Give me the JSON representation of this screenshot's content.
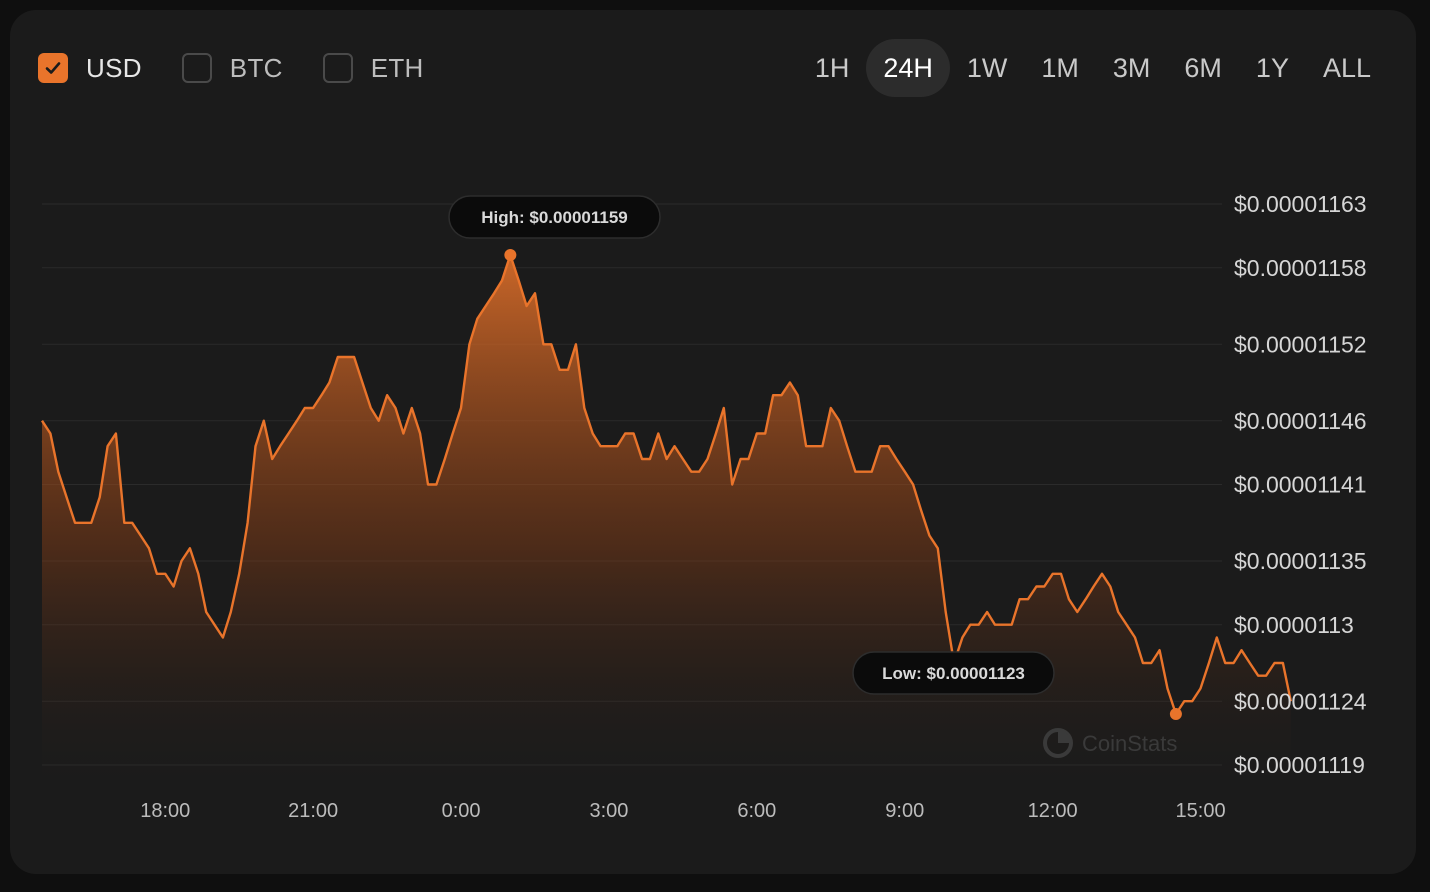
{
  "currencies": [
    {
      "label": "USD",
      "checked": true
    },
    {
      "label": "BTC",
      "checked": false
    },
    {
      "label": "ETH",
      "checked": false
    }
  ],
  "time_ranges": [
    "1H",
    "24H",
    "1W",
    "1M",
    "3M",
    "6M",
    "1Y",
    "ALL"
  ],
  "active_range": "24H",
  "accent_color": "#e9742b",
  "watermark": "CoinStats",
  "chart_data": {
    "type": "area",
    "title": "",
    "xlabel": "",
    "ylabel": "",
    "x_tick_labels": [
      "18:00",
      "21:00",
      "0:00",
      "3:00",
      "6:00",
      "9:00",
      "12:00",
      "15:00"
    ],
    "y_tick_labels": [
      "$0.00001163",
      "$0.00001158",
      "$0.00001152",
      "$0.00001146",
      "$0.00001141",
      "$0.00001135",
      "$0.0000113",
      "$0.00001124",
      "$0.00001119"
    ],
    "y_tick_values": [
      1.163e-05,
      1.158e-05,
      1.152e-05,
      1.146e-05,
      1.141e-05,
      1.135e-05,
      1.13e-05,
      1.124e-05,
      1.119e-05
    ],
    "x_unit": "hours elapsed since 15:30 (day 1)",
    "ylim": [
      1.119e-05,
      1.163e-05
    ],
    "grid": true,
    "high": {
      "label": "High: $0.00001159",
      "value": 1.159e-05
    },
    "low": {
      "label": "Low: $0.00001123",
      "value": 1.123e-05
    },
    "series": [
      {
        "values": [
          [
            0.0,
            1.146e-05
          ],
          [
            0.17,
            1.145e-05
          ],
          [
            0.33,
            1.142e-05
          ],
          [
            0.5,
            1.14e-05
          ],
          [
            0.67,
            1.138e-05
          ],
          [
            0.83,
            1.138e-05
          ],
          [
            1.0,
            1.138e-05
          ],
          [
            1.17,
            1.14e-05
          ],
          [
            1.33,
            1.144e-05
          ],
          [
            1.5,
            1.145e-05
          ],
          [
            1.67,
            1.138e-05
          ],
          [
            1.83,
            1.138e-05
          ],
          [
            2.0,
            1.137e-05
          ],
          [
            2.17,
            1.136e-05
          ],
          [
            2.33,
            1.134e-05
          ],
          [
            2.5,
            1.134e-05
          ],
          [
            2.67,
            1.133e-05
          ],
          [
            2.83,
            1.135e-05
          ],
          [
            3.0,
            1.136e-05
          ],
          [
            3.17,
            1.134e-05
          ],
          [
            3.33,
            1.131e-05
          ],
          [
            3.5,
            1.13e-05
          ],
          [
            3.67,
            1.129e-05
          ],
          [
            3.83,
            1.131e-05
          ],
          [
            4.0,
            1.134e-05
          ],
          [
            4.17,
            1.138e-05
          ],
          [
            4.33,
            1.144e-05
          ],
          [
            4.5,
            1.146e-05
          ],
          [
            4.67,
            1.143e-05
          ],
          [
            4.83,
            1.144e-05
          ],
          [
            5.0,
            1.145e-05
          ],
          [
            5.17,
            1.146e-05
          ],
          [
            5.33,
            1.147e-05
          ],
          [
            5.5,
            1.147e-05
          ],
          [
            5.67,
            1.148e-05
          ],
          [
            5.83,
            1.149e-05
          ],
          [
            6.0,
            1.151e-05
          ],
          [
            6.17,
            1.151e-05
          ],
          [
            6.33,
            1.151e-05
          ],
          [
            6.5,
            1.149e-05
          ],
          [
            6.67,
            1.147e-05
          ],
          [
            6.83,
            1.146e-05
          ],
          [
            7.0,
            1.148e-05
          ],
          [
            7.17,
            1.147e-05
          ],
          [
            7.33,
            1.145e-05
          ],
          [
            7.5,
            1.147e-05
          ],
          [
            7.67,
            1.145e-05
          ],
          [
            7.83,
            1.141e-05
          ],
          [
            8.0,
            1.141e-05
          ],
          [
            8.17,
            1.143e-05
          ],
          [
            8.33,
            1.145e-05
          ],
          [
            8.5,
            1.147e-05
          ],
          [
            8.67,
            1.152e-05
          ],
          [
            8.83,
            1.154e-05
          ],
          [
            9.0,
            1.155e-05
          ],
          [
            9.17,
            1.156e-05
          ],
          [
            9.33,
            1.157e-05
          ],
          [
            9.5,
            1.159e-05
          ],
          [
            9.67,
            1.157e-05
          ],
          [
            9.83,
            1.155e-05
          ],
          [
            10.0,
            1.156e-05
          ],
          [
            10.17,
            1.152e-05
          ],
          [
            10.33,
            1.152e-05
          ],
          [
            10.5,
            1.15e-05
          ],
          [
            10.67,
            1.15e-05
          ],
          [
            10.83,
            1.152e-05
          ],
          [
            11.0,
            1.147e-05
          ],
          [
            11.17,
            1.145e-05
          ],
          [
            11.33,
            1.144e-05
          ],
          [
            11.5,
            1.144e-05
          ],
          [
            11.67,
            1.144e-05
          ],
          [
            11.83,
            1.145e-05
          ],
          [
            12.0,
            1.145e-05
          ],
          [
            12.17,
            1.143e-05
          ],
          [
            12.33,
            1.143e-05
          ],
          [
            12.5,
            1.145e-05
          ],
          [
            12.67,
            1.143e-05
          ],
          [
            12.83,
            1.144e-05
          ],
          [
            13.0,
            1.143e-05
          ],
          [
            13.17,
            1.142e-05
          ],
          [
            13.33,
            1.142e-05
          ],
          [
            13.5,
            1.143e-05
          ],
          [
            13.67,
            1.145e-05
          ],
          [
            13.83,
            1.147e-05
          ],
          [
            14.0,
            1.141e-05
          ],
          [
            14.17,
            1.143e-05
          ],
          [
            14.33,
            1.143e-05
          ],
          [
            14.5,
            1.145e-05
          ],
          [
            14.67,
            1.145e-05
          ],
          [
            14.83,
            1.148e-05
          ],
          [
            15.0,
            1.148e-05
          ],
          [
            15.17,
            1.149e-05
          ],
          [
            15.33,
            1.148e-05
          ],
          [
            15.5,
            1.144e-05
          ],
          [
            15.67,
            1.144e-05
          ],
          [
            15.83,
            1.144e-05
          ],
          [
            16.0,
            1.147e-05
          ],
          [
            16.17,
            1.146e-05
          ],
          [
            16.33,
            1.144e-05
          ],
          [
            16.5,
            1.142e-05
          ],
          [
            16.67,
            1.142e-05
          ],
          [
            16.83,
            1.142e-05
          ],
          [
            17.0,
            1.144e-05
          ],
          [
            17.17,
            1.144e-05
          ],
          [
            17.33,
            1.143e-05
          ],
          [
            17.5,
            1.142e-05
          ],
          [
            17.67,
            1.141e-05
          ],
          [
            17.83,
            1.139e-05
          ],
          [
            18.0,
            1.137e-05
          ],
          [
            18.17,
            1.136e-05
          ],
          [
            18.33,
            1.131e-05
          ],
          [
            18.5,
            1.127e-05
          ],
          [
            18.67,
            1.129e-05
          ],
          [
            18.83,
            1.13e-05
          ],
          [
            19.0,
            1.13e-05
          ],
          [
            19.17,
            1.131e-05
          ],
          [
            19.33,
            1.13e-05
          ],
          [
            19.5,
            1.13e-05
          ],
          [
            19.67,
            1.13e-05
          ],
          [
            19.83,
            1.132e-05
          ],
          [
            20.0,
            1.132e-05
          ],
          [
            20.17,
            1.133e-05
          ],
          [
            20.33,
            1.133e-05
          ],
          [
            20.5,
            1.134e-05
          ],
          [
            20.67,
            1.134e-05
          ],
          [
            20.83,
            1.132e-05
          ],
          [
            21.0,
            1.131e-05
          ],
          [
            21.17,
            1.132e-05
          ],
          [
            21.33,
            1.133e-05
          ],
          [
            21.5,
            1.134e-05
          ],
          [
            21.67,
            1.133e-05
          ],
          [
            21.83,
            1.131e-05
          ],
          [
            22.0,
            1.13e-05
          ],
          [
            22.17,
            1.129e-05
          ],
          [
            22.33,
            1.127e-05
          ],
          [
            22.5,
            1.127e-05
          ],
          [
            22.67,
            1.128e-05
          ],
          [
            22.83,
            1.125e-05
          ],
          [
            23.0,
            1.123e-05
          ],
          [
            23.17,
            1.124e-05
          ],
          [
            23.33,
            1.124e-05
          ],
          [
            23.5,
            1.125e-05
          ],
          [
            23.67,
            1.127e-05
          ],
          [
            23.83,
            1.129e-05
          ],
          [
            24.0,
            1.127e-05
          ],
          [
            24.17,
            1.127e-05
          ],
          [
            24.33,
            1.128e-05
          ],
          [
            24.5,
            1.127e-05
          ],
          [
            24.67,
            1.126e-05
          ],
          [
            24.83,
            1.126e-05
          ],
          [
            25.0,
            1.127e-05
          ],
          [
            25.17,
            1.127e-05
          ],
          [
            25.33,
            1.124e-05
          ]
        ]
      }
    ]
  }
}
